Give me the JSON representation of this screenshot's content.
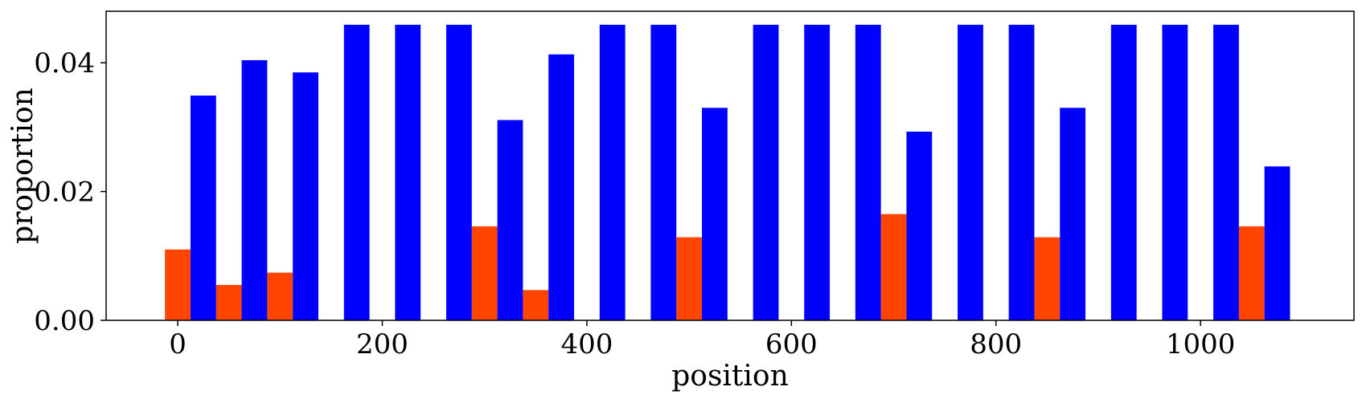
{
  "chart_data": {
    "type": "bar",
    "title": "",
    "xlabel": "position",
    "ylabel": "proportion",
    "xlim": [
      -70,
      1150
    ],
    "ylim": [
      0,
      0.048
    ],
    "bar_width": 25,
    "xticks": [
      0,
      200,
      400,
      600,
      800,
      1000
    ],
    "xtick_labels": [
      "0",
      "200",
      "400",
      "600",
      "800",
      "1000"
    ],
    "yticks": [
      0.0,
      0.02,
      0.04
    ],
    "ytick_labels": [
      "0.00",
      "0.02",
      "0.04"
    ],
    "grid": false,
    "legend": null,
    "series": [
      {
        "color": "#ff4500",
        "points": [
          {
            "x": 0,
            "y": 0.011
          },
          {
            "x": 50,
            "y": 0.0055
          },
          {
            "x": 100,
            "y": 0.0074
          },
          {
            "x": 300,
            "y": 0.0146
          },
          {
            "x": 350,
            "y": 0.0047
          },
          {
            "x": 500,
            "y": 0.0129
          },
          {
            "x": 700,
            "y": 0.0165
          },
          {
            "x": 850,
            "y": 0.0129
          },
          {
            "x": 1050,
            "y": 0.0146
          }
        ]
      },
      {
        "color": "#0000ff",
        "points": [
          {
            "x": 25,
            "y": 0.0349
          },
          {
            "x": 75,
            "y": 0.0404
          },
          {
            "x": 125,
            "y": 0.0385
          },
          {
            "x": 175,
            "y": 0.0459
          },
          {
            "x": 225,
            "y": 0.0459
          },
          {
            "x": 275,
            "y": 0.0459
          },
          {
            "x": 325,
            "y": 0.0311
          },
          {
            "x": 375,
            "y": 0.0413
          },
          {
            "x": 425,
            "y": 0.0459
          },
          {
            "x": 475,
            "y": 0.0459
          },
          {
            "x": 525,
            "y": 0.033
          },
          {
            "x": 575,
            "y": 0.0459
          },
          {
            "x": 625,
            "y": 0.0459
          },
          {
            "x": 675,
            "y": 0.0459
          },
          {
            "x": 725,
            "y": 0.0293
          },
          {
            "x": 775,
            "y": 0.0459
          },
          {
            "x": 825,
            "y": 0.0459
          },
          {
            "x": 875,
            "y": 0.033
          },
          {
            "x": 925,
            "y": 0.0459
          },
          {
            "x": 975,
            "y": 0.0459
          },
          {
            "x": 1025,
            "y": 0.0459
          },
          {
            "x": 1075,
            "y": 0.0239
          }
        ]
      }
    ]
  }
}
